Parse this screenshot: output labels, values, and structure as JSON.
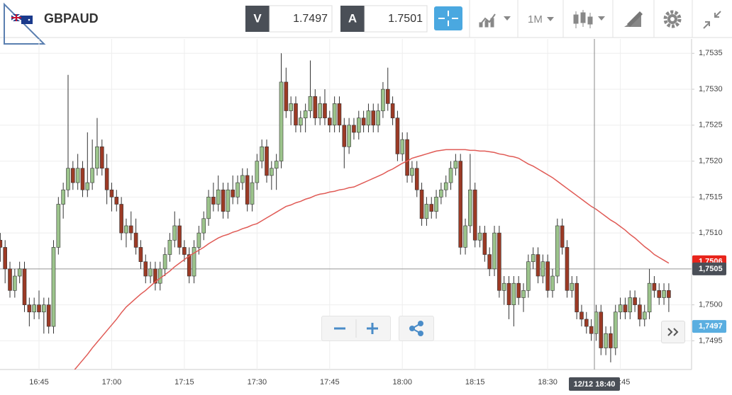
{
  "toolbar": {
    "symbol": "GBPAUD",
    "bid": {
      "label": "V",
      "value": 1.7497
    },
    "ask": {
      "label": "A",
      "value": 1.7501
    },
    "timeframe": "1M"
  },
  "chart_data": {
    "type": "candlestick",
    "categories": [
      null,
      null,
      null,
      null,
      null,
      null,
      null,
      null,
      "16:45",
      null,
      null,
      null,
      null,
      null,
      null,
      null,
      null,
      null,
      null,
      null,
      null,
      null,
      null,
      "17:00",
      null,
      null,
      null,
      null,
      null,
      null,
      null,
      null,
      null,
      null,
      null,
      null,
      null,
      null,
      "17:15",
      null,
      null,
      null,
      null,
      null,
      null,
      null,
      null,
      null,
      null,
      null,
      null,
      null,
      null,
      "17:30",
      null,
      null,
      null,
      null,
      null,
      null,
      null,
      null,
      null,
      null,
      null,
      null,
      null,
      null,
      "17:45",
      null,
      null,
      null,
      null,
      null,
      null,
      null,
      null,
      null,
      null,
      null,
      null,
      null,
      null,
      "18:00",
      null,
      null,
      null,
      null,
      null,
      null,
      null,
      null,
      null,
      null,
      null,
      null,
      null,
      null,
      "18:15",
      null,
      null,
      null,
      null,
      null,
      null,
      null,
      null,
      null,
      null,
      null,
      null,
      null,
      null,
      "18:30",
      null,
      null,
      null,
      null,
      null,
      null,
      null,
      null,
      null,
      null,
      null,
      null,
      null,
      null,
      "18:45",
      null,
      null,
      null,
      null,
      null,
      null,
      null,
      null,
      null,
      null
    ],
    "candles": [
      [
        1.7509,
        1.751,
        1.7506,
        1.7508
      ],
      [
        1.7508,
        1.7509,
        1.7503,
        1.7505
      ],
      [
        1.7505,
        1.7506,
        1.7501,
        1.7502
      ],
      [
        1.7502,
        1.7505,
        1.7501,
        1.7504
      ],
      [
        1.7504,
        1.7506,
        1.7503,
        1.7505
      ],
      [
        1.7505,
        1.7506,
        1.7499,
        1.75
      ],
      [
        1.75,
        1.7501,
        1.7497,
        1.7499
      ],
      [
        1.7499,
        1.7501,
        1.7498,
        1.75
      ],
      [
        1.75,
        1.7502,
        1.7498,
        1.7499
      ],
      [
        1.7499,
        1.7501,
        1.7496,
        1.75
      ],
      [
        1.75,
        1.7501,
        1.7496,
        1.7497
      ],
      [
        1.7497,
        1.7509,
        1.7496,
        1.7508
      ],
      [
        1.7508,
        1.7515,
        1.7507,
        1.7514
      ],
      [
        1.7514,
        1.7517,
        1.7512,
        1.7516
      ],
      [
        1.7516,
        1.7532,
        1.7515,
        1.7519
      ],
      [
        1.7519,
        1.752,
        1.7516,
        1.7517
      ],
      [
        1.7517,
        1.7521,
        1.7516,
        1.7519
      ],
      [
        1.7519,
        1.752,
        1.7515,
        1.7516
      ],
      [
        1.7516,
        1.7524,
        1.7515,
        1.7517
      ],
      [
        1.7517,
        1.7523,
        1.7516,
        1.7519
      ],
      [
        1.7519,
        1.7526,
        1.7518,
        1.7522
      ],
      [
        1.7522,
        1.7523,
        1.7518,
        1.7519
      ],
      [
        1.7519,
        1.7521,
        1.7514,
        1.7516
      ],
      [
        1.7516,
        1.7517,
        1.7513,
        1.7515
      ],
      [
        1.7515,
        1.7516,
        1.7513,
        1.7514
      ],
      [
        1.7514,
        1.7515,
        1.7509,
        1.751
      ],
      [
        1.751,
        1.7512,
        1.7508,
        1.7511
      ],
      [
        1.7511,
        1.7513,
        1.7509,
        1.751
      ],
      [
        1.751,
        1.7512,
        1.7507,
        1.7508
      ],
      [
        1.7508,
        1.7509,
        1.7505,
        1.7506
      ],
      [
        1.7506,
        1.7507,
        1.7503,
        1.7504
      ],
      [
        1.7504,
        1.7506,
        1.7503,
        1.7505
      ],
      [
        1.7505,
        1.7506,
        1.7502,
        1.7503
      ],
      [
        1.7503,
        1.7506,
        1.7502,
        1.7505
      ],
      [
        1.7505,
        1.7508,
        1.7504,
        1.7507
      ],
      [
        1.7507,
        1.751,
        1.7506,
        1.7509
      ],
      [
        1.7509,
        1.7513,
        1.7508,
        1.7511
      ],
      [
        1.7511,
        1.7512,
        1.7507,
        1.7508
      ],
      [
        1.7508,
        1.7509,
        1.7506,
        1.7507
      ],
      [
        1.7507,
        1.7508,
        1.7503,
        1.7504
      ],
      [
        1.7504,
        1.7509,
        1.7503,
        1.7508
      ],
      [
        1.7508,
        1.7511,
        1.7507,
        1.751
      ],
      [
        1.751,
        1.7513,
        1.7509,
        1.7512
      ],
      [
        1.7512,
        1.7516,
        1.7511,
        1.7515
      ],
      [
        1.7515,
        1.7517,
        1.7513,
        1.7514
      ],
      [
        1.7514,
        1.7518,
        1.7513,
        1.7516
      ],
      [
        1.7516,
        1.7517,
        1.7512,
        1.7513
      ],
      [
        1.7513,
        1.7517,
        1.7512,
        1.7516
      ],
      [
        1.7516,
        1.7518,
        1.7514,
        1.7515
      ],
      [
        1.7515,
        1.7518,
        1.7514,
        1.7517
      ],
      [
        1.7517,
        1.7519,
        1.7516,
        1.7518
      ],
      [
        1.7518,
        1.7519,
        1.7513,
        1.7514
      ],
      [
        1.7514,
        1.7518,
        1.7513,
        1.7517
      ],
      [
        1.7517,
        1.7521,
        1.7516,
        1.752
      ],
      [
        1.752,
        1.7523,
        1.7519,
        1.7522
      ],
      [
        1.7522,
        1.7523,
        1.7517,
        1.7518
      ],
      [
        1.7518,
        1.752,
        1.7516,
        1.7519
      ],
      [
        1.7519,
        1.7521,
        1.7516,
        1.752
      ],
      [
        1.752,
        1.7535,
        1.7519,
        1.7531
      ],
      [
        1.7531,
        1.7533,
        1.7526,
        1.7527
      ],
      [
        1.7527,
        1.7529,
        1.7525,
        1.7528
      ],
      [
        1.7528,
        1.7529,
        1.7524,
        1.7525
      ],
      [
        1.7525,
        1.7527,
        1.7524,
        1.7526
      ],
      [
        1.7526,
        1.7528,
        1.7524,
        1.7527
      ],
      [
        1.7527,
        1.7534,
        1.7526,
        1.7529
      ],
      [
        1.7529,
        1.753,
        1.7525,
        1.7526
      ],
      [
        1.7526,
        1.7529,
        1.7525,
        1.7528
      ],
      [
        1.7528,
        1.753,
        1.7525,
        1.7526
      ],
      [
        1.7526,
        1.7527,
        1.7524,
        1.7525
      ],
      [
        1.7525,
        1.7529,
        1.7524,
        1.7528
      ],
      [
        1.7528,
        1.7529,
        1.7524,
        1.7525
      ],
      [
        1.7525,
        1.7526,
        1.7519,
        1.7522
      ],
      [
        1.7522,
        1.7526,
        1.7521,
        1.7525
      ],
      [
        1.7525,
        1.7526,
        1.7523,
        1.7524
      ],
      [
        1.7524,
        1.7527,
        1.7523,
        1.7526
      ],
      [
        1.7526,
        1.7527,
        1.7524,
        1.7525
      ],
      [
        1.7525,
        1.7528,
        1.7524,
        1.7527
      ],
      [
        1.7527,
        1.7528,
        1.7524,
        1.7525
      ],
      [
        1.7525,
        1.7528,
        1.7524,
        1.7527
      ],
      [
        1.7527,
        1.7531,
        1.7526,
        1.753
      ],
      [
        1.753,
        1.7533,
        1.7527,
        1.7528
      ],
      [
        1.7528,
        1.7529,
        1.7525,
        1.7526
      ],
      [
        1.7526,
        1.7527,
        1.752,
        1.7521
      ],
      [
        1.7521,
        1.7524,
        1.752,
        1.7523
      ],
      [
        1.7523,
        1.7524,
        1.7517,
        1.7518
      ],
      [
        1.7518,
        1.752,
        1.7517,
        1.7519
      ],
      [
        1.7519,
        1.752,
        1.7515,
        1.7516
      ],
      [
        1.7516,
        1.7517,
        1.7511,
        1.7512
      ],
      [
        1.7512,
        1.7515,
        1.7511,
        1.7514
      ],
      [
        1.7514,
        1.7515,
        1.7512,
        1.7513
      ],
      [
        1.7513,
        1.7516,
        1.7512,
        1.7515
      ],
      [
        1.7515,
        1.7517,
        1.7514,
        1.7516
      ],
      [
        1.7516,
        1.7518,
        1.7515,
        1.7517
      ],
      [
        1.7517,
        1.752,
        1.7516,
        1.7519
      ],
      [
        1.7519,
        1.7521,
        1.7518,
        1.752
      ],
      [
        1.752,
        1.7521,
        1.7507,
        1.7508
      ],
      [
        1.7508,
        1.7512,
        1.7507,
        1.7511
      ],
      [
        1.7511,
        1.7521,
        1.751,
        1.7516
      ],
      [
        1.7516,
        1.7517,
        1.7508,
        1.7509
      ],
      [
        1.7509,
        1.7511,
        1.7508,
        1.751
      ],
      [
        1.751,
        1.7511,
        1.7506,
        1.7507
      ],
      [
        1.7507,
        1.7508,
        1.7504,
        1.7505
      ],
      [
        1.7505,
        1.7511,
        1.7504,
        1.751
      ],
      [
        1.751,
        1.7511,
        1.7501,
        1.7502
      ],
      [
        1.7502,
        1.7504,
        1.75,
        1.7503
      ],
      [
        1.7503,
        1.7504,
        1.7498,
        1.75
      ],
      [
        1.75,
        1.7504,
        1.7497,
        1.7503
      ],
      [
        1.7503,
        1.7504,
        1.75,
        1.7501
      ],
      [
        1.7501,
        1.7503,
        1.7499,
        1.7502
      ],
      [
        1.7502,
        1.7507,
        1.7501,
        1.7506
      ],
      [
        1.7506,
        1.7508,
        1.7505,
        1.7507
      ],
      [
        1.7507,
        1.7508,
        1.7503,
        1.7504
      ],
      [
        1.7504,
        1.7507,
        1.7503,
        1.7506
      ],
      [
        1.7506,
        1.7507,
        1.7501,
        1.7502
      ],
      [
        1.7502,
        1.7505,
        1.7501,
        1.7504
      ],
      [
        1.7504,
        1.7512,
        1.7503,
        1.7511
      ],
      [
        1.7511,
        1.7512,
        1.7507,
        1.7508
      ],
      [
        1.7508,
        1.7509,
        1.7501,
        1.7502
      ],
      [
        1.7502,
        1.7504,
        1.7501,
        1.7503
      ],
      [
        1.7503,
        1.7504,
        1.7498,
        1.7499
      ],
      [
        1.7499,
        1.75,
        1.7497,
        1.7498
      ],
      [
        1.7498,
        1.7499,
        1.7496,
        1.7497
      ],
      [
        1.7497,
        1.7498,
        1.7495,
        1.7496
      ],
      [
        1.7496,
        1.75,
        1.7495,
        1.7499
      ],
      [
        1.7499,
        1.75,
        1.7493,
        1.7494
      ],
      [
        1.7494,
        1.7497,
        1.7493,
        1.7496
      ],
      [
        1.7496,
        1.7497,
        1.7492,
        1.7494
      ],
      [
        1.7494,
        1.75,
        1.7493,
        1.7499
      ],
      [
        1.7499,
        1.7501,
        1.7498,
        1.75
      ],
      [
        1.75,
        1.7501,
        1.7498,
        1.7499
      ],
      [
        1.7499,
        1.7502,
        1.7498,
        1.7501
      ],
      [
        1.7501,
        1.7502,
        1.7499,
        1.75
      ],
      [
        1.75,
        1.7501,
        1.7497,
        1.7498
      ],
      [
        1.7498,
        1.75,
        1.7497,
        1.7499
      ],
      [
        1.7499,
        1.7505,
        1.7498,
        1.7503
      ],
      [
        1.7503,
        1.7504,
        1.7501,
        1.7502
      ],
      [
        1.7502,
        1.7503,
        1.75,
        1.7501
      ],
      [
        1.7501,
        1.7503,
        1.75,
        1.7502
      ],
      [
        1.7502,
        1.7503,
        1.7499,
        1.7501
      ]
    ],
    "up_color": "#9cc48c",
    "down_color": "#9c3a25",
    "overlay": {
      "color": "#e05a55",
      "values": [
        null,
        null,
        null,
        null,
        null,
        null,
        null,
        null,
        null,
        null,
        null,
        null,
        null,
        null,
        null,
        1.74907,
        1.74915,
        1.74923,
        1.74931,
        1.7494,
        1.74948,
        1.74956,
        1.74964,
        1.74972,
        1.7498,
        1.74989,
        1.74997,
        1.75003,
        1.75009,
        1.75015,
        1.7502,
        1.75026,
        1.75032,
        1.75037,
        1.75042,
        1.75047,
        1.75053,
        1.75058,
        1.75063,
        1.75068,
        1.75072,
        1.75076,
        1.7508,
        1.75085,
        1.75089,
        1.75093,
        1.75096,
        1.75098,
        1.75101,
        1.75103,
        1.75106,
        1.75108,
        1.75111,
        1.75113,
        1.75117,
        1.75121,
        1.75125,
        1.75129,
        1.75133,
        1.75137,
        1.75139,
        1.75142,
        1.75144,
        1.75147,
        1.75149,
        1.75152,
        1.75154,
        1.75155,
        1.75157,
        1.75158,
        1.7516,
        1.75161,
        1.75163,
        1.75164,
        1.75167,
        1.7517,
        1.75173,
        1.75176,
        1.75179,
        1.75182,
        1.75186,
        1.75189,
        1.75193,
        1.75197,
        1.752,
        1.75204,
        1.75206,
        1.75208,
        1.7521,
        1.75212,
        1.75214,
        1.75215,
        1.75216,
        1.75216,
        1.75216,
        1.75216,
        1.75216,
        1.75215,
        1.75215,
        1.75214,
        1.75214,
        1.75213,
        1.75212,
        1.7521,
        1.75209,
        1.75207,
        1.75206,
        1.75204,
        1.752,
        1.75196,
        1.75193,
        1.75189,
        1.75185,
        1.75181,
        1.75177,
        1.75172,
        1.75167,
        1.75162,
        1.75157,
        1.75152,
        1.75147,
        1.75142,
        1.75137,
        1.75133,
        1.75128,
        1.75123,
        1.75118,
        1.75114,
        1.75109,
        1.75104,
        1.75098,
        1.75093,
        1.75087,
        1.75081,
        1.75076,
        1.7507,
        1.75066,
        1.75062,
        1.75058
      ]
    },
    "ylim": [
      1.7491,
      1.7537
    ],
    "yticks": [
      {
        "value": 1.7495,
        "label": "1,7495"
      },
      {
        "value": 1.75,
        "label": "1,7500"
      },
      {
        "value": 1.7505,
        "label": "1,7505"
      },
      {
        "value": 1.751,
        "label": "1,7510"
      },
      {
        "value": 1.7515,
        "label": "1,7515"
      },
      {
        "value": 1.752,
        "label": "1,7520"
      },
      {
        "value": 1.7525,
        "label": "1,7525"
      },
      {
        "value": 1.753,
        "label": "1,7530"
      },
      {
        "value": 1.7535,
        "label": "1,7535"
      }
    ],
    "grid": true,
    "price_line": 1.7505,
    "price_tags": [
      {
        "value": 1.7506,
        "label": "1,7506",
        "color": "#e8241b"
      },
      {
        "value": 1.7505,
        "label": "1,7505",
        "color": "#4a4f57"
      },
      {
        "value": 1.7497,
        "label": "1,7497",
        "color": "#5aaee0"
      }
    ],
    "crosshair": {
      "label": "12/12 18:40"
    }
  }
}
